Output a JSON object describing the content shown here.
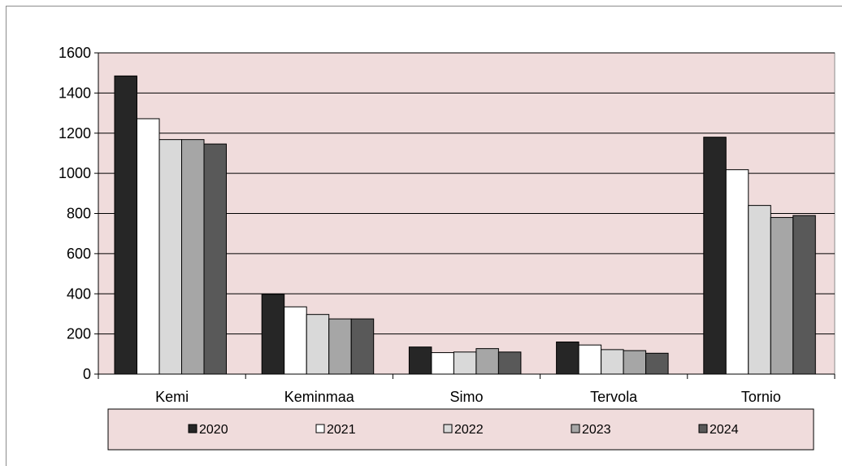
{
  "chart_data": {
    "type": "bar",
    "title": "",
    "xlabel": "",
    "ylabel": "",
    "categories": [
      "Kemi",
      "Keminmaa",
      "Simo",
      "Tervola",
      "Tornio"
    ],
    "series": [
      {
        "name": "2020",
        "values": [
          1485,
          398,
          135,
          160,
          1180
        ],
        "color": "#262626"
      },
      {
        "name": "2021",
        "values": [
          1272,
          335,
          107,
          145,
          1018
        ],
        "color": "#ffffff"
      },
      {
        "name": "2022",
        "values": [
          1168,
          297,
          110,
          122,
          840
        ],
        "color": "#d9d9d9"
      },
      {
        "name": "2023",
        "values": [
          1168,
          275,
          127,
          117,
          780
        ],
        "color": "#a6a6a6"
      },
      {
        "name": "2024",
        "values": [
          1146,
          275,
          110,
          104,
          790
        ],
        "color": "#595959"
      }
    ],
    "ylim": [
      0,
      1600
    ],
    "yticks": [
      "0",
      "200",
      "400",
      "600",
      "800",
      "1000",
      "1200",
      "1400",
      "1600"
    ],
    "grid": true,
    "legend_position": "bottom",
    "plot_background": "#f0dcdc",
    "legend_background": "#f0dcdc"
  }
}
